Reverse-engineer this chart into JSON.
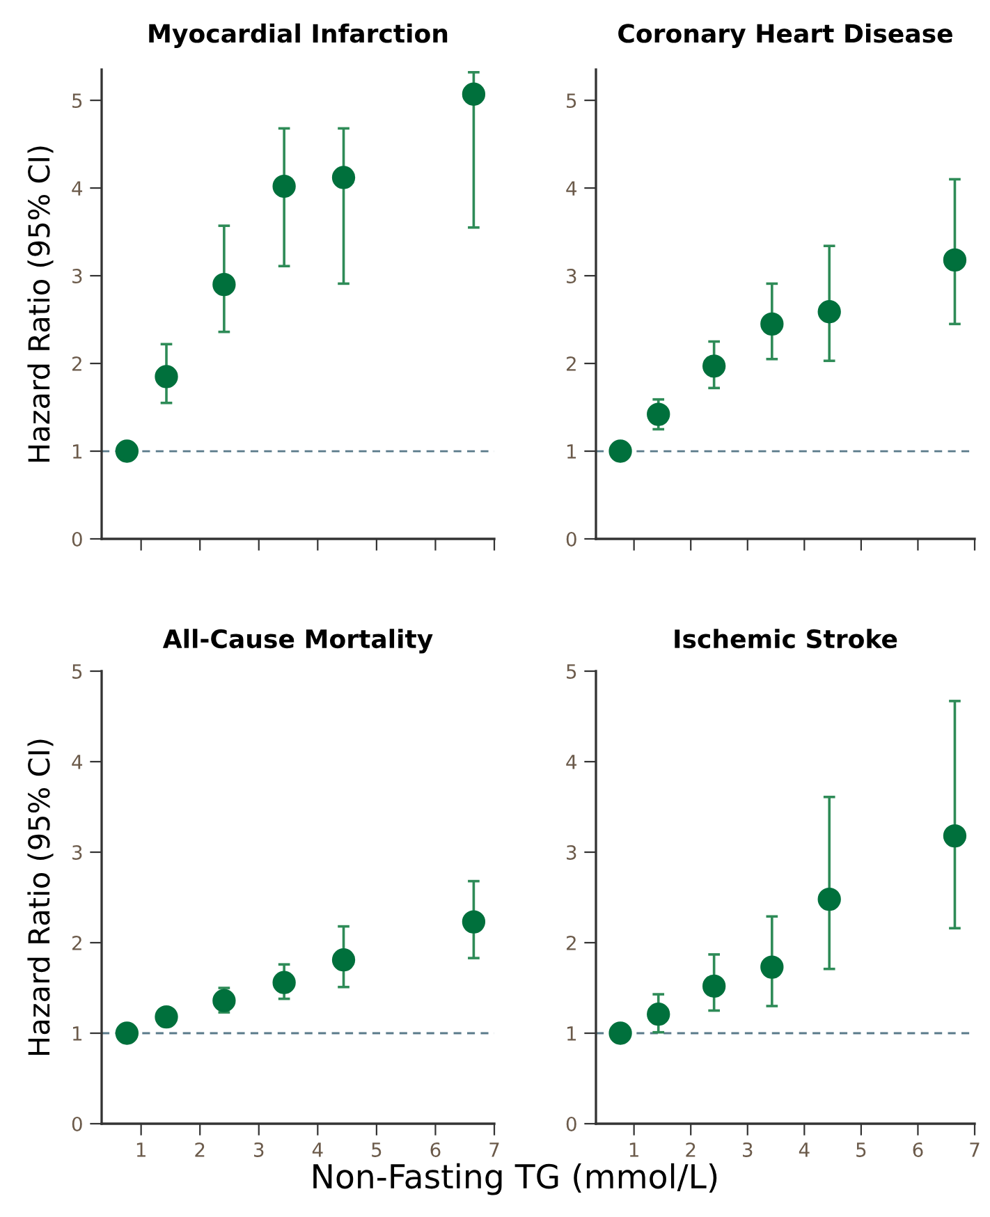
{
  "chart_data": [
    {
      "type": "scatter",
      "title": "Myocardial Infarction",
      "ylabel": "Hazard Ratio (95% CI)",
      "x": [
        0.76,
        1.43,
        2.41,
        3.43,
        4.44,
        6.65
      ],
      "values": [
        1.0,
        1.85,
        2.9,
        4.02,
        4.12,
        5.07
      ],
      "errors": [
        null,
        [
          1.55,
          2.22
        ],
        [
          2.36,
          3.57
        ],
        [
          3.11,
          4.68
        ],
        [
          2.91,
          4.68
        ],
        [
          3.55,
          5.32
        ]
      ],
      "color": "#00703c",
      "marker": "circle",
      "xlim": [
        0.33,
        7
      ],
      "xticks": [
        {
          "value": 1,
          "label": null
        },
        {
          "value": 2,
          "label": null
        },
        {
          "value": 3,
          "label": null
        },
        {
          "value": 4,
          "label": null
        },
        {
          "value": 5,
          "label": null
        },
        {
          "value": 6,
          "label": null
        },
        {
          "value": 7,
          "label": null
        }
      ],
      "ylim": [
        0,
        5.35
      ],
      "yticks": [
        0,
        1,
        2,
        3,
        4,
        5
      ],
      "tick_labels": "y",
      "ref_lines": [
        {
          "axis": "y",
          "value": 1,
          "color": "#5a7a8a",
          "line_style": "dashed"
        }
      ]
    },
    {
      "type": "scatter",
      "title": "Coronary Heart Disease",
      "x": [
        0.76,
        1.43,
        2.41,
        3.43,
        4.44,
        6.65
      ],
      "values": [
        1.0,
        1.42,
        1.97,
        2.45,
        2.59,
        3.18
      ],
      "errors": [
        null,
        [
          1.25,
          1.59
        ],
        [
          1.72,
          2.25
        ],
        [
          2.05,
          2.91
        ],
        [
          2.03,
          3.34
        ],
        [
          2.45,
          4.1
        ]
      ],
      "color": "#00703c",
      "marker": "circle",
      "xlim": [
        0.33,
        7
      ],
      "xticks": [
        {
          "value": 1,
          "label": null
        },
        {
          "value": 2,
          "label": null
        },
        {
          "value": 3,
          "label": null
        },
        {
          "value": 4,
          "label": null
        },
        {
          "value": 5,
          "label": null
        },
        {
          "value": 6,
          "label": null
        },
        {
          "value": 7,
          "label": null
        }
      ],
      "ylim": [
        0,
        5.35
      ],
      "yticks": [
        0,
        1,
        2,
        3,
        4,
        5
      ],
      "tick_labels": "y",
      "ref_lines": [
        {
          "axis": "y",
          "value": 1,
          "color": "#5a7a8a",
          "line_style": "dashed"
        }
      ]
    },
    {
      "type": "scatter",
      "title": "All-Cause Mortality",
      "ylabel": "Hazard Ratio (95% CI)",
      "xlabel": "Non-Fasting TG (mmol/L)",
      "x": [
        0.76,
        1.43,
        2.41,
        3.43,
        4.44,
        6.65
      ],
      "values": [
        1.0,
        1.18,
        1.36,
        1.56,
        1.81,
        2.23
      ],
      "errors": [
        null,
        null,
        [
          1.23,
          1.5
        ],
        [
          1.38,
          1.76
        ],
        [
          1.51,
          2.18
        ],
        [
          1.83,
          2.68
        ]
      ],
      "color": "#00703c",
      "marker": "circle",
      "xlim": [
        0.33,
        7
      ],
      "xticks": [
        1,
        2,
        3,
        4,
        5,
        6,
        7
      ],
      "ylim": [
        0,
        5
      ],
      "yticks": [
        0,
        1,
        2,
        3,
        4,
        5
      ],
      "ref_lines": [
        {
          "axis": "y",
          "value": 1,
          "color": "#5a7a8a",
          "line_style": "dashed"
        }
      ]
    },
    {
      "type": "scatter",
      "title": "Ischemic Stroke",
      "x": [
        0.76,
        1.43,
        2.41,
        3.43,
        4.44,
        6.65
      ],
      "values": [
        1.0,
        1.21,
        1.52,
        1.73,
        2.48,
        3.18
      ],
      "errors": [
        null,
        [
          1.01,
          1.43
        ],
        [
          1.25,
          1.87
        ],
        [
          1.3,
          2.29
        ],
        [
          1.71,
          3.61
        ],
        [
          2.16,
          4.67
        ]
      ],
      "color": "#00703c",
      "marker": "circle",
      "xlim": [
        0.33,
        7
      ],
      "xticks": [
        1,
        2,
        3,
        4,
        5,
        6,
        7
      ],
      "ylim": [
        0,
        5
      ],
      "yticks": [
        0,
        1,
        2,
        3,
        4,
        5
      ],
      "ref_lines": [
        {
          "axis": "y",
          "value": 1,
          "color": "#5a7a8a",
          "line_style": "dashed"
        }
      ]
    }
  ]
}
